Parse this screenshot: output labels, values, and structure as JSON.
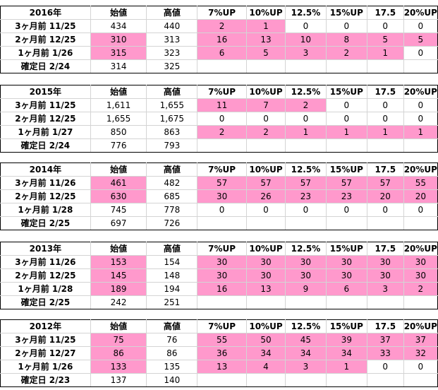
{
  "colors": {
    "highlight": "#ff99cc",
    "grid": "#d4d4d4",
    "border": "#000000"
  },
  "headers": [
    "始値",
    "高値",
    "7%UP",
    "10%UP",
    "12.5%",
    "15%UP",
    "17.5",
    "20%UP"
  ],
  "tables": [
    {
      "year": "2016年",
      "rows": [
        {
          "label": "3ヶ月前 11/25",
          "values": [
            "434",
            "440",
            "2",
            "1",
            "0",
            "0",
            "0",
            "0"
          ],
          "pink": [
            false,
            false,
            true,
            true,
            false,
            false,
            false,
            false
          ]
        },
        {
          "label": "2ヶ月前 12/25",
          "values": [
            "310",
            "313",
            "16",
            "13",
            "10",
            "8",
            "5",
            "5"
          ],
          "pink": [
            true,
            false,
            true,
            true,
            true,
            true,
            true,
            true
          ]
        },
        {
          "label": "1ヶ月前 1/26",
          "values": [
            "315",
            "323",
            "6",
            "5",
            "3",
            "2",
            "1",
            "0"
          ],
          "pink": [
            true,
            false,
            true,
            true,
            true,
            true,
            true,
            false
          ]
        },
        {
          "label": "確定日 2/24",
          "values": [
            "314",
            "325",
            "",
            "",
            "",
            "",
            "",
            ""
          ],
          "pink": [
            false,
            false,
            false,
            false,
            false,
            false,
            false,
            false
          ]
        }
      ]
    },
    {
      "year": "2015年",
      "rows": [
        {
          "label": "3ヶ月前 11/25",
          "values": [
            "1,611",
            "1,655",
            "11",
            "7",
            "2",
            "0",
            "0",
            "0"
          ],
          "pink": [
            false,
            false,
            true,
            true,
            true,
            false,
            false,
            false
          ]
        },
        {
          "label": "2ヶ月前 12/25",
          "values": [
            "1,655",
            "1,675",
            "0",
            "0",
            "0",
            "0",
            "0",
            "0"
          ],
          "pink": [
            false,
            false,
            false,
            false,
            false,
            false,
            false,
            false
          ]
        },
        {
          "label": "1ヶ月前 1/27",
          "values": [
            "850",
            "863",
            "2",
            "2",
            "1",
            "1",
            "1",
            "1"
          ],
          "pink": [
            false,
            false,
            true,
            true,
            true,
            true,
            true,
            true
          ]
        },
        {
          "label": "確定日 2/24",
          "values": [
            "776",
            "793",
            "",
            "",
            "",
            "",
            "",
            ""
          ],
          "pink": [
            false,
            false,
            false,
            false,
            false,
            false,
            false,
            false
          ]
        }
      ]
    },
    {
      "year": "2014年",
      "rows": [
        {
          "label": "3ヶ月前 11/26",
          "values": [
            "461",
            "482",
            "57",
            "57",
            "57",
            "57",
            "57",
            "55"
          ],
          "pink": [
            true,
            false,
            true,
            true,
            true,
            true,
            true,
            true
          ]
        },
        {
          "label": "2ヶ月前 12/25",
          "values": [
            "630",
            "685",
            "30",
            "26",
            "23",
            "23",
            "20",
            "20"
          ],
          "pink": [
            true,
            false,
            true,
            true,
            true,
            true,
            true,
            true
          ]
        },
        {
          "label": "1ヶ月前 1/28",
          "values": [
            "745",
            "778",
            "0",
            "0",
            "0",
            "0",
            "0",
            "0"
          ],
          "pink": [
            false,
            false,
            false,
            false,
            false,
            false,
            false,
            false
          ]
        },
        {
          "label": "確定日 2/25",
          "values": [
            "697",
            "726",
            "",
            "",
            "",
            "",
            "",
            ""
          ],
          "pink": [
            false,
            false,
            false,
            false,
            false,
            false,
            false,
            false
          ]
        }
      ]
    },
    {
      "year": "2013年",
      "rows": [
        {
          "label": "3ヶ月前 11/26",
          "values": [
            "153",
            "154",
            "30",
            "30",
            "30",
            "30",
            "30",
            "30"
          ],
          "pink": [
            true,
            false,
            true,
            true,
            true,
            true,
            true,
            true
          ]
        },
        {
          "label": "2ヶ月前 12/25",
          "values": [
            "145",
            "148",
            "30",
            "30",
            "30",
            "30",
            "30",
            "30"
          ],
          "pink": [
            true,
            false,
            true,
            true,
            true,
            true,
            true,
            true
          ]
        },
        {
          "label": "1ヶ月前 1/28",
          "values": [
            "189",
            "194",
            "16",
            "13",
            "9",
            "6",
            "3",
            "2"
          ],
          "pink": [
            true,
            false,
            true,
            true,
            true,
            true,
            true,
            true
          ]
        },
        {
          "label": "確定日 2/25",
          "values": [
            "242",
            "251",
            "",
            "",
            "",
            "",
            "",
            ""
          ],
          "pink": [
            false,
            false,
            false,
            false,
            false,
            false,
            false,
            false
          ]
        }
      ]
    },
    {
      "year": "2012年",
      "rows": [
        {
          "label": "3ヶ月前 11/25",
          "values": [
            "75",
            "76",
            "55",
            "50",
            "45",
            "39",
            "37",
            "37"
          ],
          "pink": [
            true,
            false,
            true,
            true,
            true,
            true,
            true,
            true
          ]
        },
        {
          "label": "2ヶ月前 12/27",
          "values": [
            "86",
            "86",
            "36",
            "34",
            "34",
            "34",
            "33",
            "32"
          ],
          "pink": [
            true,
            false,
            true,
            true,
            true,
            true,
            true,
            true
          ]
        },
        {
          "label": "1ヶ月前 1/26",
          "values": [
            "133",
            "135",
            "13",
            "4",
            "3",
            "1",
            "0",
            "0"
          ],
          "pink": [
            true,
            false,
            true,
            true,
            true,
            true,
            false,
            false
          ]
        },
        {
          "label": "確定日 2/23",
          "values": [
            "137",
            "140",
            "",
            "",
            "",
            "",
            "",
            ""
          ],
          "pink": [
            false,
            false,
            false,
            false,
            false,
            false,
            false,
            false
          ]
        }
      ]
    }
  ]
}
